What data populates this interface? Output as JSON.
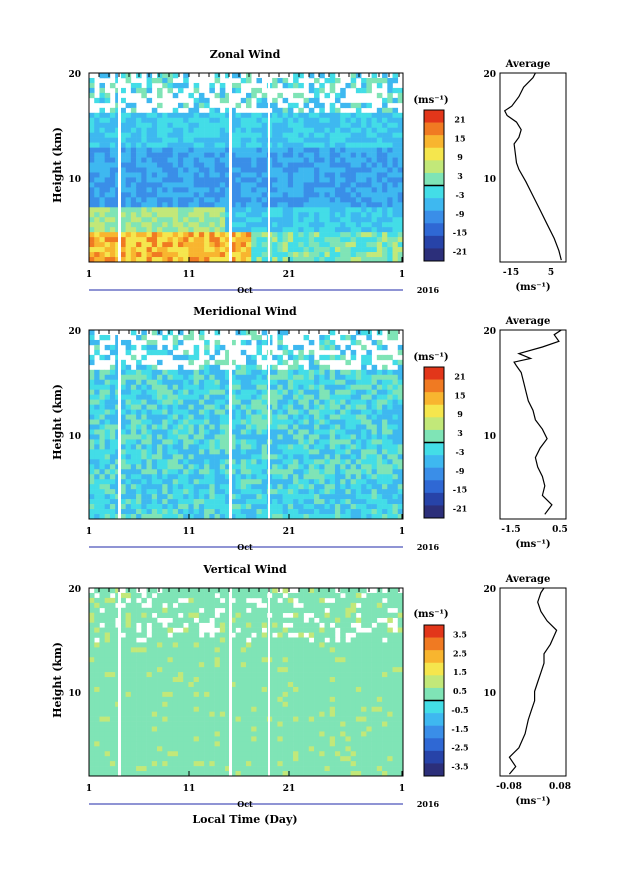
{
  "colors": {
    "colormap": [
      "#2c2f7a",
      "#2743a8",
      "#2f68d4",
      "#3a8ee8",
      "#3eb8f0",
      "#43dde7",
      "#7fe4b6",
      "#c2e879",
      "#f5e64d",
      "#f8b52f",
      "#f07a22",
      "#e2361a"
    ],
    "line": "#000000",
    "fill_vertical": "#73e6c6"
  },
  "chart_data": [
    {
      "type": "heatmap",
      "title": "Zonal Wind",
      "ylabel": "Height (km)",
      "ylim": [
        0,
        20
      ],
      "y_ticks": [
        "10",
        "20"
      ],
      "x_ticks": [
        "1",
        "11",
        "21",
        "1"
      ],
      "x_month": "Oct",
      "x_year": "2016",
      "colorbar": {
        "unit": "(ms⁻¹)",
        "ticks": [
          "21",
          "15",
          "9",
          "3",
          "-3",
          "-9",
          "-15",
          "-21"
        ],
        "range": [
          -24,
          24
        ]
      },
      "average": {
        "title": "Average",
        "ylim": [
          0,
          20
        ],
        "y_ticks": [
          "10",
          "20"
        ],
        "x_ticks": [
          "-15",
          "5"
        ],
        "xlim": [
          -20,
          8
        ],
        "xlabel": "(ms⁻¹)",
        "profile": [
          [
            6,
            0.2
          ],
          [
            5,
            1.2
          ],
          [
            3,
            2.5
          ],
          [
            0,
            4
          ],
          [
            -3,
            5.5
          ],
          [
            -6,
            7
          ],
          [
            -9,
            8.5
          ],
          [
            -12,
            9.8
          ],
          [
            -13,
            10.5
          ],
          [
            -13.5,
            11.5
          ],
          [
            -14,
            12.5
          ],
          [
            -12,
            13.2
          ],
          [
            -11,
            14
          ],
          [
            -13,
            14.8
          ],
          [
            -17,
            15.5
          ],
          [
            -18,
            16
          ],
          [
            -15,
            16.5
          ],
          [
            -12,
            17.5
          ],
          [
            -10,
            18.5
          ],
          [
            -6,
            19.5
          ],
          [
            -5,
            20
          ]
        ]
      }
    },
    {
      "type": "heatmap",
      "title": "Meridional Wind",
      "ylabel": "Height (km)",
      "ylim": [
        0,
        20
      ],
      "y_ticks": [
        "10",
        "20"
      ],
      "x_ticks": [
        "1",
        "11",
        "21",
        "1"
      ],
      "x_month": "Oct",
      "x_year": "2016",
      "colorbar": {
        "unit": "(ms⁻¹)",
        "ticks": [
          "21",
          "15",
          "9",
          "3",
          "-3",
          "-9",
          "-15",
          "-21"
        ],
        "range": [
          -24,
          24
        ]
      },
      "average": {
        "title": "Average",
        "ylim": [
          0,
          20
        ],
        "y_ticks": [
          "10",
          "20"
        ],
        "x_ticks": [
          "-1.5",
          "0.5"
        ],
        "xlim": [
          -2.1,
          0.7
        ],
        "xlabel": "(ms⁻¹)",
        "profile": [
          [
            -0.2,
            0.5
          ],
          [
            0.1,
            1.5
          ],
          [
            -0.3,
            2.5
          ],
          [
            -0.2,
            3.5
          ],
          [
            -0.3,
            4.5
          ],
          [
            -0.5,
            5.5
          ],
          [
            -0.6,
            6.5
          ],
          [
            -0.4,
            7.5
          ],
          [
            -0.1,
            8.5
          ],
          [
            -0.3,
            9.5
          ],
          [
            -0.6,
            10.5
          ],
          [
            -0.7,
            11.5
          ],
          [
            -0.9,
            12.5
          ],
          [
            -1.0,
            13.5
          ],
          [
            -1.1,
            14.5
          ],
          [
            -1.2,
            15.5
          ],
          [
            -1.4,
            16.2
          ],
          [
            -1.5,
            16.6
          ],
          [
            -0.8,
            17.0
          ],
          [
            -1.3,
            17.5
          ],
          [
            -0.3,
            18.2
          ],
          [
            0.4,
            18.8
          ],
          [
            0.2,
            19.5
          ],
          [
            0.5,
            20
          ]
        ]
      }
    },
    {
      "type": "heatmap",
      "title": "Vertical Wind",
      "ylabel": "Height (km)",
      "xlabel": "Local Time (Day)",
      "ylim": [
        0,
        20
      ],
      "y_ticks": [
        "10",
        "20"
      ],
      "x_ticks": [
        "1",
        "11",
        "21",
        "1"
      ],
      "x_month": "Oct",
      "x_year": "2016",
      "colorbar": {
        "unit": "(ms⁻¹)",
        "ticks": [
          "3.5",
          "2.5",
          "1.5",
          "0.5",
          "-0.5",
          "-1.5",
          "-2.5",
          "-3.5"
        ],
        "range": [
          -4,
          4
        ]
      },
      "average": {
        "title": "Average",
        "ylim": [
          0,
          20
        ],
        "y_ticks": [
          "10",
          "20"
        ],
        "x_ticks": [
          "-0.08",
          "0.08"
        ],
        "xlim": [
          -0.11,
          0.1
        ],
        "xlabel": "(ms⁻¹)",
        "profile": [
          [
            -0.08,
            0.2
          ],
          [
            -0.06,
            1.0
          ],
          [
            -0.08,
            2.0
          ],
          [
            -0.05,
            3.0
          ],
          [
            -0.03,
            4.5
          ],
          [
            -0.02,
            6.0
          ],
          [
            -0.01,
            7.0
          ],
          [
            0.0,
            8.0
          ],
          [
            0.0,
            9.0
          ],
          [
            0.01,
            10.0
          ],
          [
            0.02,
            11.0
          ],
          [
            0.03,
            12.0
          ],
          [
            0.03,
            13.0
          ],
          [
            0.05,
            14.0
          ],
          [
            0.07,
            15.5
          ],
          [
            0.04,
            16.5
          ],
          [
            0.02,
            17.5
          ],
          [
            0.01,
            18.5
          ],
          [
            0.02,
            19.5
          ],
          [
            0.03,
            20
          ]
        ]
      }
    }
  ]
}
